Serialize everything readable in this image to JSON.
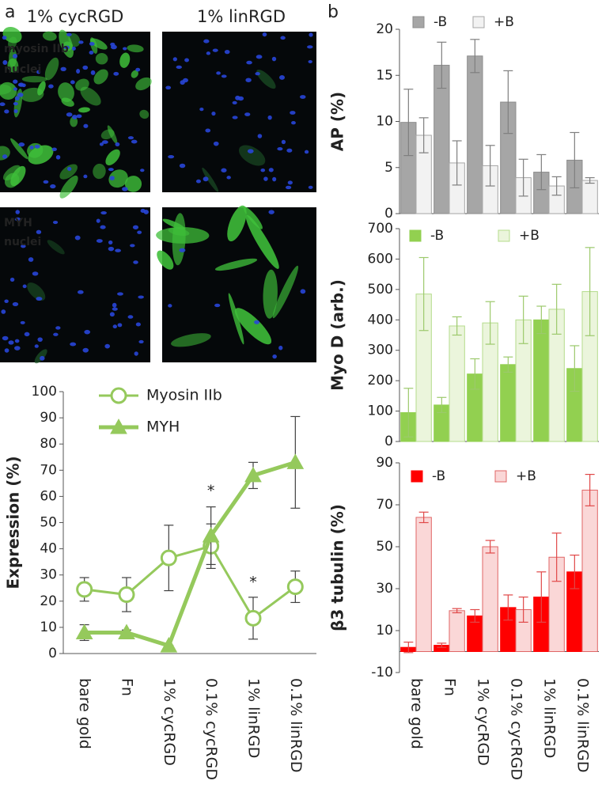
{
  "figure": {
    "panel_labels": [
      "a",
      "b"
    ],
    "image_columns": [
      "1% cycRGD",
      "1% linRGD"
    ],
    "image_rows": [
      [
        "myosin IIb",
        "nuclei"
      ],
      [
        "MYH",
        "nuclei"
      ]
    ]
  },
  "chart_data": [
    {
      "type": "line",
      "ylabel": "Expression (%)",
      "categories": [
        "bare gold",
        "Fn",
        "1% cycRGD",
        "0.1% cycRGD",
        "1% linRGD",
        "0.1% linRGD"
      ],
      "series": [
        {
          "name": "Myosin IIb",
          "color": "#95c95c",
          "marker": "circle",
          "values": [
            24.5,
            22.5,
            36.5,
            41,
            13.5,
            25.5
          ],
          "errors": [
            4.5,
            6.5,
            12.5,
            8.5,
            8,
            6
          ]
        },
        {
          "name": "MYH",
          "color": "#95c95c",
          "marker": "triangle",
          "values": [
            8,
            8,
            3,
            45,
            68,
            73
          ],
          "errors": [
            3,
            1,
            0,
            11,
            5,
            17.5
          ]
        }
      ],
      "error_color": "#404040",
      "ylim": [
        0,
        100
      ],
      "yticks": [
        0,
        10,
        20,
        30,
        40,
        50,
        60,
        70,
        80,
        90,
        100
      ],
      "grid": false,
      "annotations": [
        {
          "text": "*",
          "x": "0.1% cycRGD",
          "y": 62
        },
        {
          "text": "*",
          "x": "1% linRGD",
          "y": 27
        }
      ]
    },
    {
      "type": "bar",
      "ylabel": "AP  (%)",
      "legend": "top",
      "series": [
        {
          "name": "-B",
          "color": "#a6a6a6",
          "edge": "#8c8c8c",
          "values": [
            9.9,
            16.1,
            17.1,
            12.1,
            4.5,
            5.8
          ],
          "errors": [
            3.6,
            2.5,
            1.8,
            3.4,
            1.9,
            3.0
          ]
        },
        {
          "name": "+B",
          "color": "#f2f2f2",
          "edge": "#a6a6a6",
          "values": [
            8.5,
            5.5,
            5.2,
            3.9,
            3.0,
            3.6
          ],
          "errors": [
            1.9,
            2.4,
            2.2,
            2.0,
            1.0,
            0.3
          ]
        }
      ],
      "error_color": "#7f7f7f",
      "ylim": [
        0,
        20
      ],
      "yticks": [
        0,
        5,
        10,
        15,
        20
      ],
      "grid": false
    },
    {
      "type": "bar",
      "ylabel": "Myo D (arb.)",
      "legend": "top",
      "series": [
        {
          "name": "-B",
          "color": "#92d050",
          "edge": "#92d050",
          "values": [
            95,
            120,
            222,
            253,
            400,
            240
          ],
          "errors": [
            80,
            25,
            50,
            25,
            45,
            75
          ]
        },
        {
          "name": "+B",
          "color": "#ebf5dc",
          "edge": "#b5dc8c",
          "values": [
            485,
            380,
            390,
            400,
            435,
            493
          ],
          "errors": [
            120,
            30,
            70,
            78,
            82,
            145
          ]
        }
      ],
      "error_color": "#9cc96c",
      "ylim": [
        0,
        700
      ],
      "yticks": [
        0,
        100,
        200,
        300,
        400,
        500,
        600,
        700
      ],
      "grid": false
    },
    {
      "type": "bar",
      "ylabel": "β3 tubulin  (%)",
      "legend": "top",
      "categories": [
        "bare gold",
        "Fn",
        "1% cycRGD",
        "0.1% cycRGD",
        "1% linRGD",
        "0.1% linRGD"
      ],
      "series": [
        {
          "name": "-B",
          "color": "#ff0000",
          "edge": "#ff0000",
          "values": [
            2,
            3,
            17,
            21,
            26,
            38
          ],
          "errors": [
            2.5,
            1,
            3,
            6,
            12,
            8
          ]
        },
        {
          "name": "+B",
          "color": "#fad7d7",
          "edge": "#e06666",
          "values": [
            64,
            19.5,
            50,
            20,
            45,
            77
          ],
          "errors": [
            2.5,
            1,
            3,
            6,
            11.5,
            7.5
          ]
        }
      ],
      "error_color": "#e04848",
      "ylim": [
        -10,
        90
      ],
      "yticks": [
        -10,
        10,
        30,
        50,
        70,
        90
      ],
      "grid": false
    }
  ]
}
